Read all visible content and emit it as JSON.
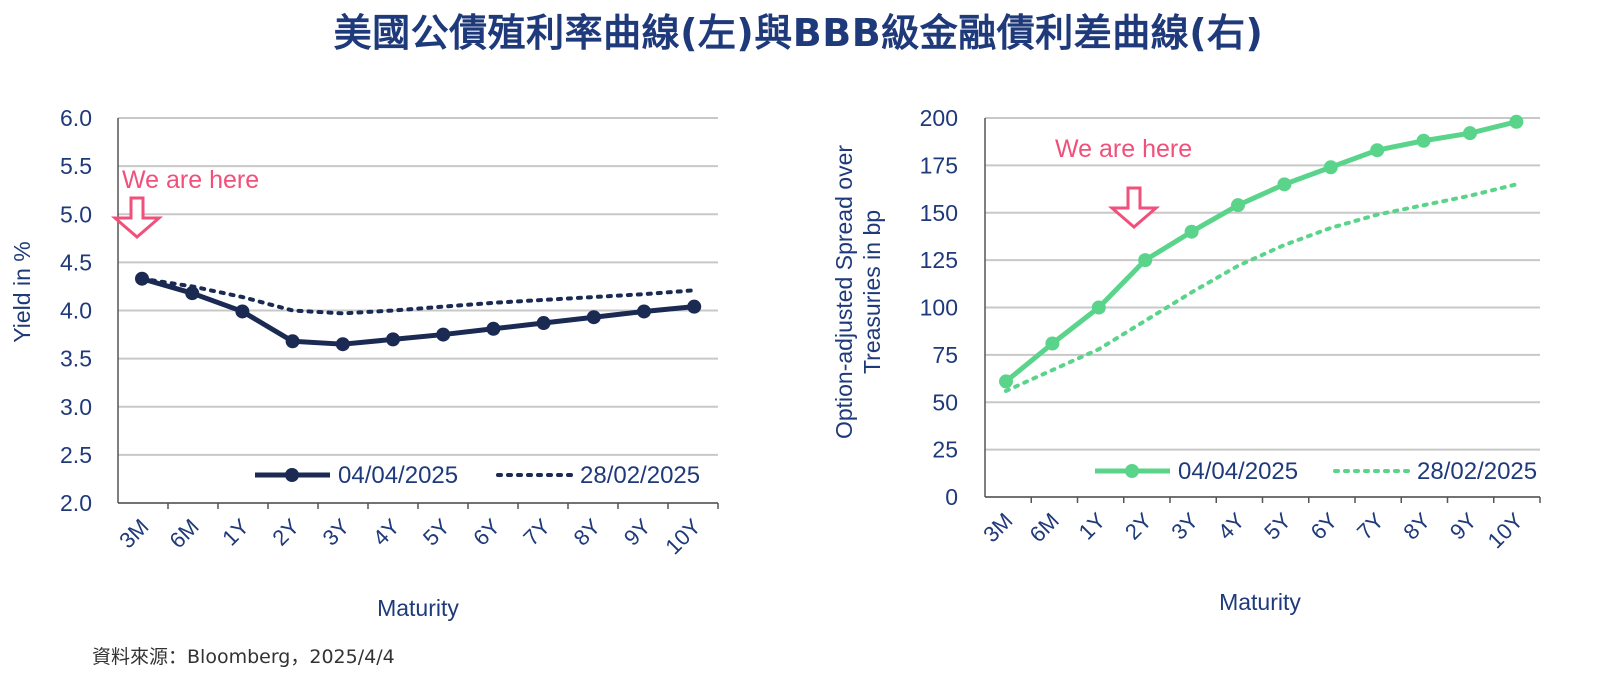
{
  "title": "美國公債殖利率曲線(左)與BBB級金融債利差曲線(右)",
  "source": "資料來源：Bloomberg，2025/4/4",
  "colors": {
    "title": "#1f3a7a",
    "left_series": "#1a2a52",
    "right_series": "#5ad48a",
    "annotation": "#f0507a",
    "grid": "#c8c8c8",
    "axis_text": "#1f3a7a"
  },
  "chart_data": [
    {
      "type": "line",
      "ylabel": "Yield in %",
      "xlabel": "Maturity",
      "categories": [
        "3M",
        "6M",
        "1Y",
        "2Y",
        "3Y",
        "4Y",
        "5Y",
        "6Y",
        "7Y",
        "8Y",
        "9Y",
        "10Y"
      ],
      "ylim": [
        2.0,
        6.0
      ],
      "yticks": [
        "2.0",
        "2.5",
        "3.0",
        "3.5",
        "4.0",
        "4.5",
        "5.0",
        "5.5",
        "6.0"
      ],
      "grid": true,
      "legend_position": "bottom",
      "annotation": {
        "text": "We are here",
        "category": "3M"
      },
      "series": [
        {
          "name": "04/04/2025",
          "style": "solid-markers",
          "values": [
            4.33,
            4.18,
            3.99,
            3.68,
            3.65,
            3.7,
            3.75,
            3.81,
            3.87,
            3.93,
            3.99,
            4.04
          ]
        },
        {
          "name": "28/02/2025",
          "style": "dotted",
          "values": [
            4.33,
            4.25,
            4.14,
            4.0,
            3.97,
            4.0,
            4.04,
            4.08,
            4.11,
            4.14,
            4.17,
            4.21
          ]
        }
      ]
    },
    {
      "type": "line",
      "ylabel": "Option-adjusted Spread over Treasuries in bp",
      "ylabel_lines": [
        "Option-adjusted Spread over",
        "Treasuries in bp"
      ],
      "xlabel": "Maturity",
      "categories": [
        "3M",
        "6M",
        "1Y",
        "2Y",
        "3Y",
        "4Y",
        "5Y",
        "6Y",
        "7Y",
        "8Y",
        "9Y",
        "10Y"
      ],
      "ylim": [
        0,
        200
      ],
      "yticks": [
        "0",
        "25",
        "50",
        "75",
        "100",
        "125",
        "150",
        "175",
        "200"
      ],
      "grid": true,
      "legend_position": "bottom",
      "annotation": {
        "text": "We are here",
        "category": "2Y"
      },
      "series": [
        {
          "name": "04/04/2025",
          "style": "solid-markers",
          "values": [
            61,
            81,
            100,
            125,
            140,
            154,
            165,
            174,
            183,
            188,
            192,
            198
          ]
        },
        {
          "name": "28/02/2025",
          "style": "dotted",
          "values": [
            56,
            67,
            78,
            93,
            108,
            122,
            133,
            142,
            149,
            154,
            159,
            165
          ]
        }
      ]
    }
  ]
}
